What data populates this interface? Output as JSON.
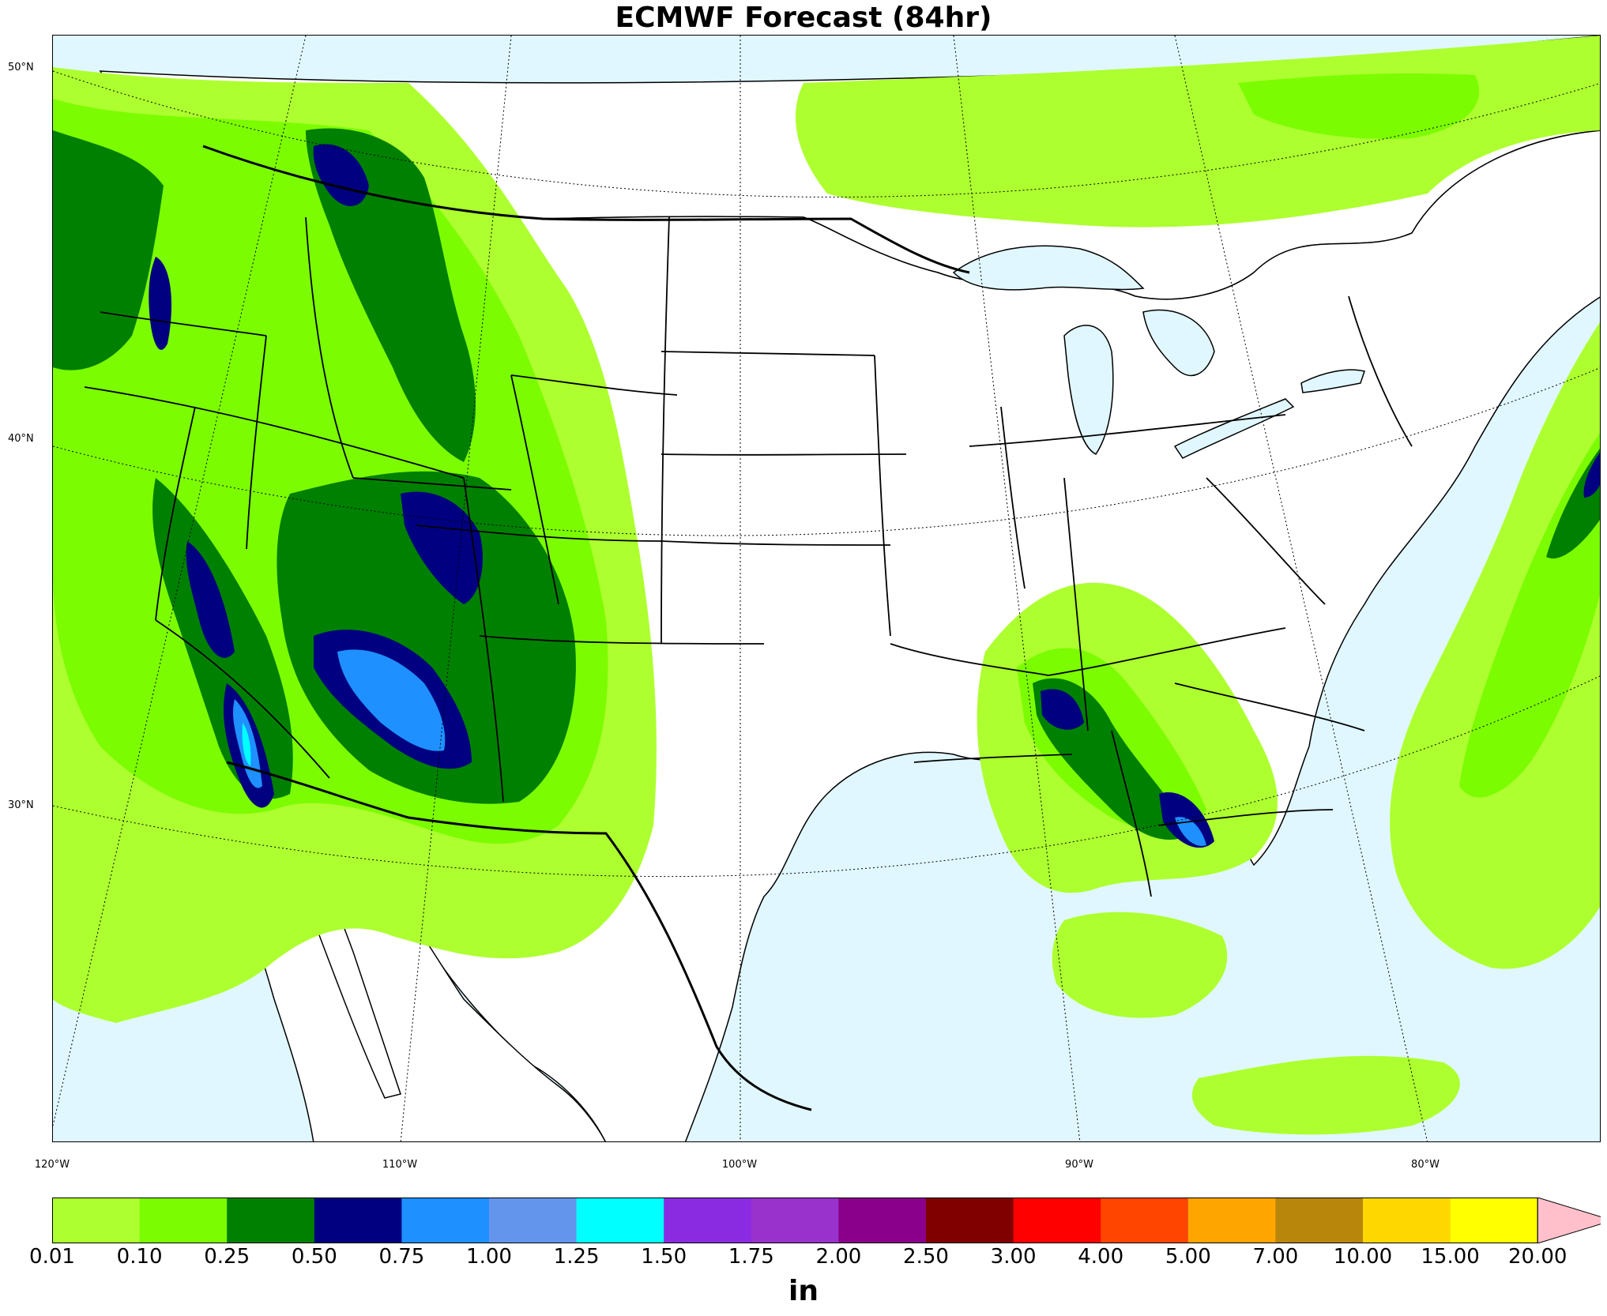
{
  "title": "ECMWF Forecast (84hr)",
  "map": {
    "projection": "lambert-conformal",
    "region": "CONUS",
    "variable": "precipitation",
    "lat_labels": [
      "50°N",
      "40°N",
      "30°N"
    ],
    "lon_labels": [
      "120°W",
      "110°W",
      "100°W",
      "90°W",
      "80°W"
    ],
    "colors": {
      "ocean": "#e0f7ff",
      "land": "#ffffff",
      "borders": "#000000"
    },
    "precip_regions": [
      {
        "name": "pacific-northwest",
        "max_level": "0.75"
      },
      {
        "name": "california-sierra",
        "max_level": "1.50"
      },
      {
        "name": "great-basin-utah",
        "max_level": "1.25"
      },
      {
        "name": "arizona-new-mexico",
        "max_level": "1.25"
      },
      {
        "name": "mid-south-gulf-coast",
        "max_level": "1.00"
      },
      {
        "name": "atlantic-offshore",
        "max_level": "0.75"
      }
    ]
  },
  "colorbar": {
    "units": "in",
    "levels": [
      "0.01",
      "0.10",
      "0.25",
      "0.50",
      "0.75",
      "1.00",
      "1.25",
      "1.50",
      "1.75",
      "2.00",
      "2.50",
      "3.00",
      "4.00",
      "5.00",
      "7.00",
      "10.00",
      "15.00",
      "20.00"
    ],
    "colors": [
      "#adff2f",
      "#7cfc00",
      "#008000",
      "#000080",
      "#1e90ff",
      "#6495ed",
      "#00ffff",
      "#8a2be2",
      "#9932cc",
      "#8b008b",
      "#800000",
      "#ff0000",
      "#ff4500",
      "#ffa500",
      "#b8860b",
      "#ffd700",
      "#ffff00"
    ],
    "extend_color": "#ffc0cb"
  }
}
